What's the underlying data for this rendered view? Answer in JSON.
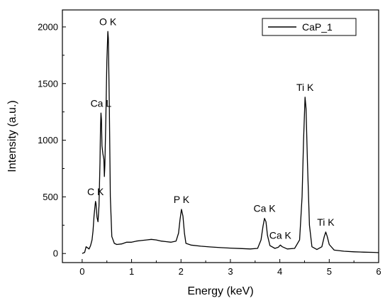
{
  "chart_data": {
    "type": "line",
    "title": "",
    "xlabel": "Energy (keV)",
    "ylabel": "Intensity (a.u.)",
    "xlim": [
      -0.4,
      6
    ],
    "ylim": [
      -80,
      2150
    ],
    "xticks": [
      0,
      1,
      2,
      3,
      4,
      5,
      6
    ],
    "yticks": [
      0,
      500,
      1000,
      1500,
      2000
    ],
    "grid": false,
    "legend_position": "top-right",
    "series": [
      {
        "name": "CaP_1",
        "color": "#000000",
        "points": [
          [
            0.0,
            0
          ],
          [
            0.05,
            10
          ],
          [
            0.08,
            60
          ],
          [
            0.11,
            50
          ],
          [
            0.14,
            40
          ],
          [
            0.17,
            70
          ],
          [
            0.2,
            120
          ],
          [
            0.22,
            200
          ],
          [
            0.24,
            330
          ],
          [
            0.26,
            420
          ],
          [
            0.27,
            460
          ],
          [
            0.28,
            440
          ],
          [
            0.3,
            320
          ],
          [
            0.32,
            280
          ],
          [
            0.34,
            420
          ],
          [
            0.36,
            800
          ],
          [
            0.37,
            1100
          ],
          [
            0.38,
            1240
          ],
          [
            0.39,
            1180
          ],
          [
            0.4,
            950
          ],
          [
            0.42,
            880
          ],
          [
            0.44,
            830
          ],
          [
            0.45,
            680
          ],
          [
            0.46,
            780
          ],
          [
            0.48,
            1200
          ],
          [
            0.5,
            1700
          ],
          [
            0.52,
            1960
          ],
          [
            0.53,
            1900
          ],
          [
            0.55,
            1300
          ],
          [
            0.57,
            500
          ],
          [
            0.6,
            150
          ],
          [
            0.65,
            90
          ],
          [
            0.7,
            80
          ],
          [
            0.8,
            85
          ],
          [
            0.9,
            100
          ],
          [
            1.0,
            100
          ],
          [
            1.1,
            110
          ],
          [
            1.2,
            115
          ],
          [
            1.3,
            120
          ],
          [
            1.4,
            125
          ],
          [
            1.5,
            120
          ],
          [
            1.6,
            110
          ],
          [
            1.7,
            105
          ],
          [
            1.8,
            100
          ],
          [
            1.9,
            110
          ],
          [
            1.95,
            180
          ],
          [
            1.98,
            300
          ],
          [
            2.01,
            390
          ],
          [
            2.04,
            330
          ],
          [
            2.07,
            180
          ],
          [
            2.1,
            90
          ],
          [
            2.2,
            75
          ],
          [
            2.4,
            65
          ],
          [
            2.6,
            58
          ],
          [
            2.8,
            52
          ],
          [
            3.0,
            48
          ],
          [
            3.2,
            44
          ],
          [
            3.4,
            40
          ],
          [
            3.55,
            45
          ],
          [
            3.62,
            120
          ],
          [
            3.66,
            240
          ],
          [
            3.69,
            310
          ],
          [
            3.72,
            280
          ],
          [
            3.75,
            160
          ],
          [
            3.8,
            70
          ],
          [
            3.9,
            45
          ],
          [
            3.97,
            55
          ],
          [
            4.01,
            75
          ],
          [
            4.05,
            60
          ],
          [
            4.15,
            40
          ],
          [
            4.3,
            45
          ],
          [
            4.4,
            120
          ],
          [
            4.45,
            500
          ],
          [
            4.48,
            1000
          ],
          [
            4.51,
            1380
          ],
          [
            4.53,
            1280
          ],
          [
            4.56,
            800
          ],
          [
            4.6,
            250
          ],
          [
            4.65,
            60
          ],
          [
            4.75,
            35
          ],
          [
            4.85,
            60
          ],
          [
            4.9,
            150
          ],
          [
            4.93,
            190
          ],
          [
            4.96,
            150
          ],
          [
            5.0,
            80
          ],
          [
            5.1,
            30
          ],
          [
            5.3,
            20
          ],
          [
            5.5,
            15
          ],
          [
            5.7,
            12
          ],
          [
            5.9,
            10
          ],
          [
            6.0,
            8
          ]
        ]
      }
    ],
    "annotations": [
      {
        "text": "O K",
        "x": 0.52,
        "y": 1960
      },
      {
        "text": "Ca L",
        "x": 0.38,
        "y": 1240
      },
      {
        "text": "C K",
        "x": 0.27,
        "y": 460
      },
      {
        "text": "P K",
        "x": 2.01,
        "y": 390
      },
      {
        "text": "Ca K",
        "x": 3.69,
        "y": 310
      },
      {
        "text": "Ca K",
        "x": 4.01,
        "y": 75
      },
      {
        "text": "Ti K",
        "x": 4.51,
        "y": 1380
      },
      {
        "text": "Ti K",
        "x": 4.93,
        "y": 190
      }
    ]
  }
}
